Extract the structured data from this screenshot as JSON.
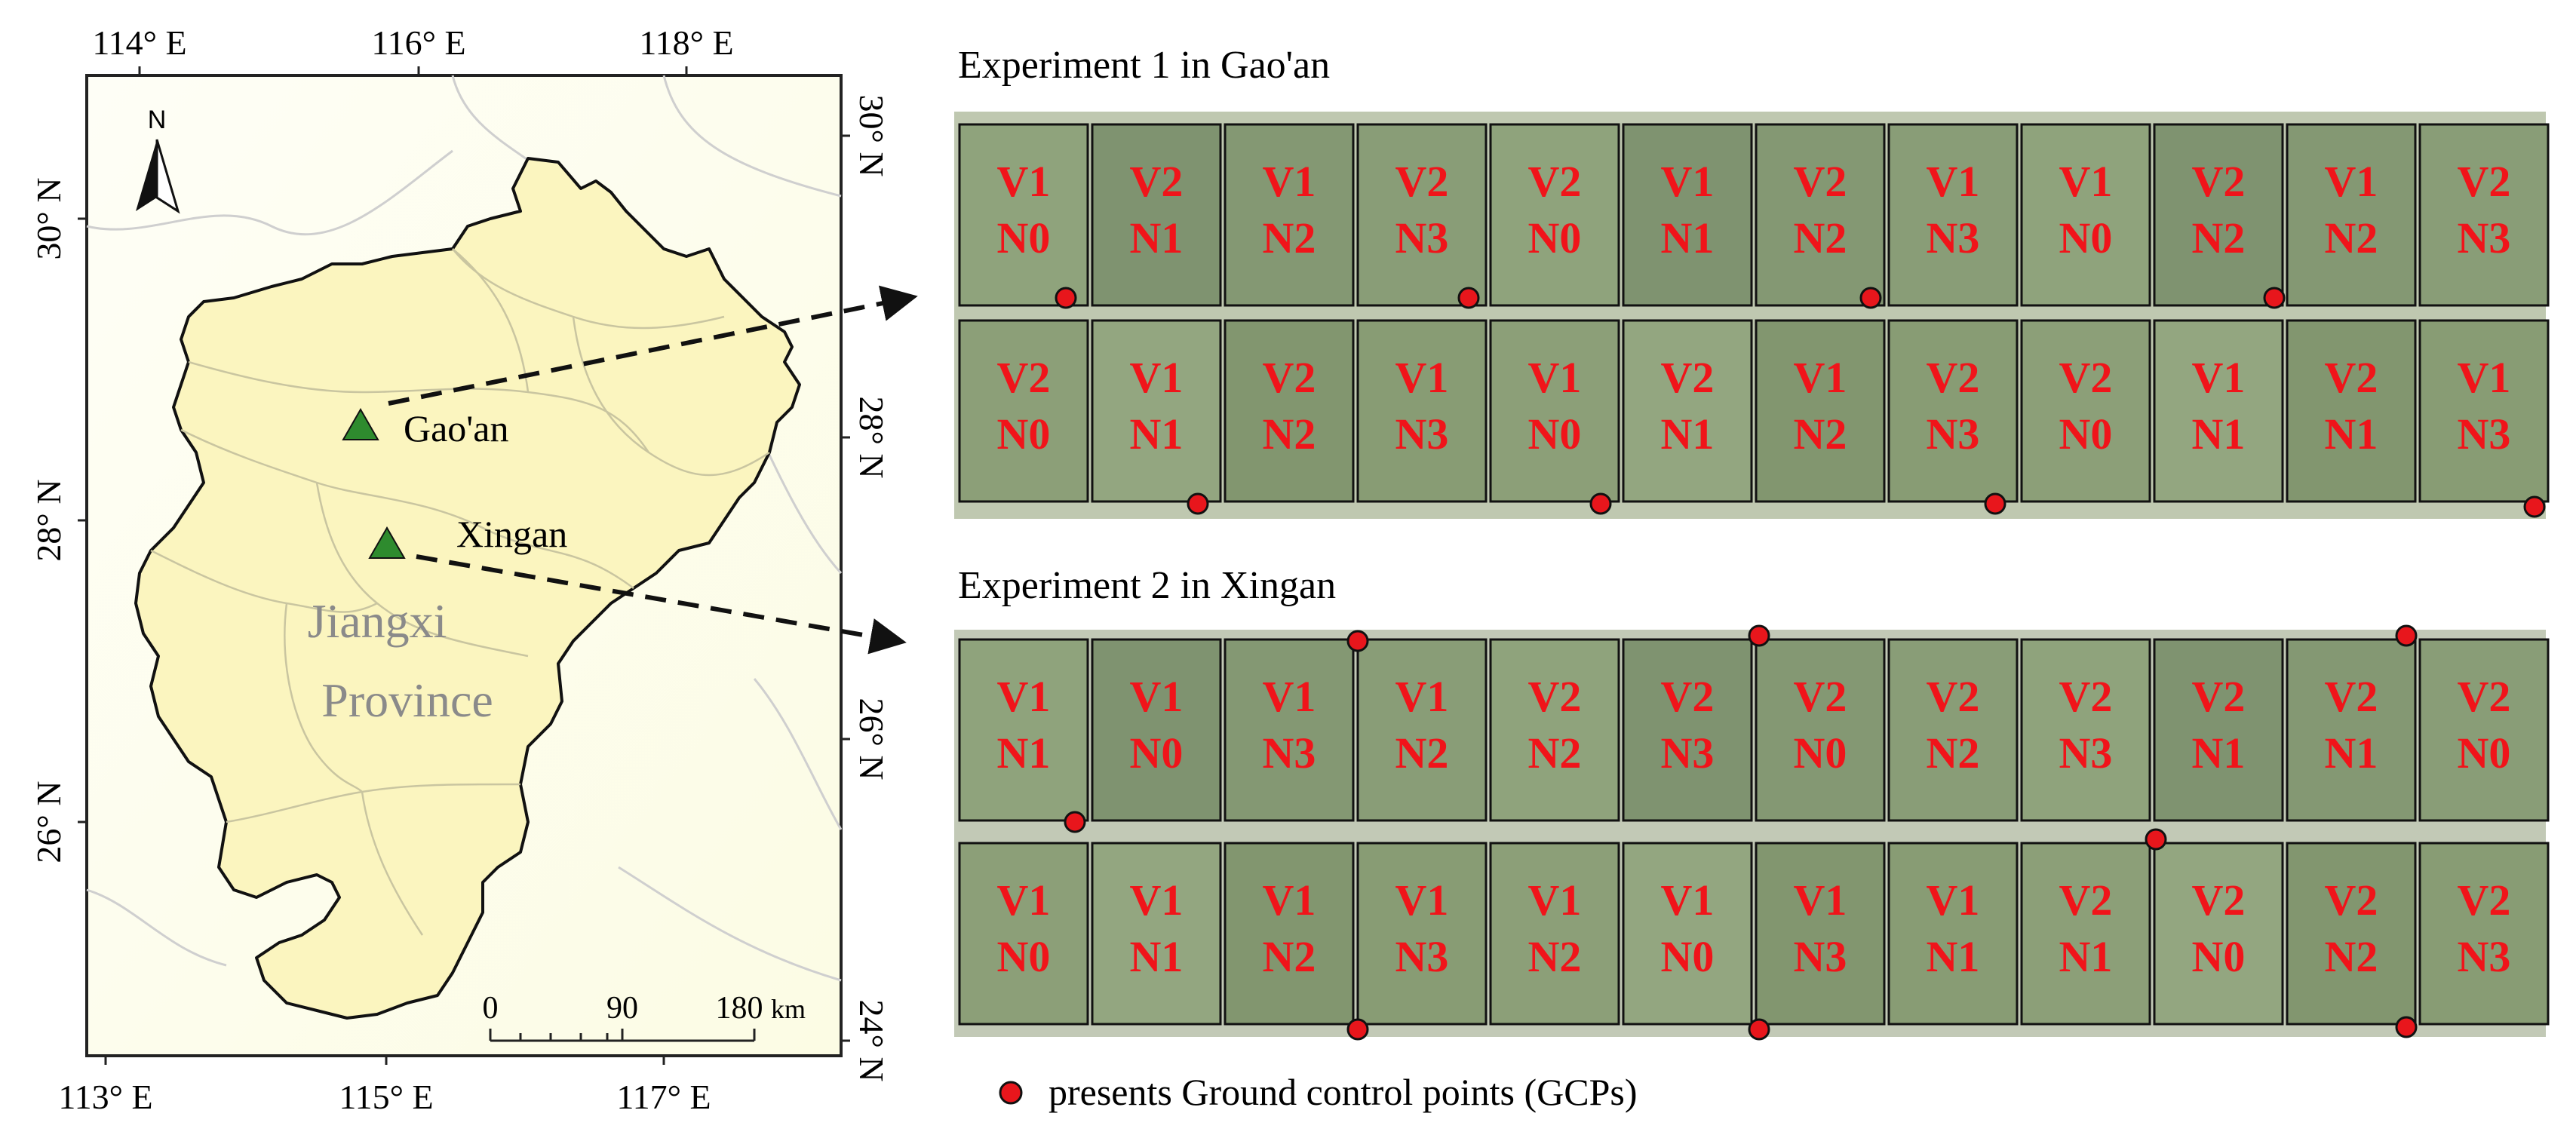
{
  "map": {
    "lon_top": [
      "114° E",
      "116° E",
      "118° E"
    ],
    "lon_bottom": [
      "113° E",
      "115° E",
      "117° E"
    ],
    "lat_left": [
      "30° N",
      "28° N",
      "26° N"
    ],
    "lat_right": [
      "30° N",
      "28° N",
      "26° N",
      "24° N"
    ],
    "north_label": "N",
    "province_label_line1": "Jiangxi",
    "province_label_line2": "Province",
    "sites": [
      {
        "name": "Gao'an"
      },
      {
        "name": "Xingan"
      }
    ],
    "scale": {
      "ticks": [
        "0",
        "90",
        "180"
      ],
      "unit": "km"
    },
    "colors": {
      "province": "#fbf5bf",
      "site_marker": "#2e8b2e",
      "background": "#fefef2"
    }
  },
  "experiment1": {
    "title": "Experiment 1 in Gao'an",
    "row1": [
      [
        "V1",
        "N0"
      ],
      [
        "V2",
        "N1"
      ],
      [
        "V1",
        "N2"
      ],
      [
        "V2",
        "N3"
      ],
      [
        "V2",
        "N0"
      ],
      [
        "V1",
        "N1"
      ],
      [
        "V2",
        "N2"
      ],
      [
        "V1",
        "N3"
      ],
      [
        "V1",
        "N0"
      ],
      [
        "V2",
        "N2"
      ],
      [
        "V1",
        "N2"
      ],
      [
        "V2",
        "N3"
      ]
    ],
    "row2": [
      [
        "V2",
        "N0"
      ],
      [
        "V1",
        "N1"
      ],
      [
        "V2",
        "N2"
      ],
      [
        "V1",
        "N3"
      ],
      [
        "V1",
        "N0"
      ],
      [
        "V2",
        "N1"
      ],
      [
        "V1",
        "N2"
      ],
      [
        "V2",
        "N3"
      ],
      [
        "V2",
        "N0"
      ],
      [
        "V1",
        "N1"
      ],
      [
        "V2",
        "N1"
      ],
      [
        "V1",
        "N3"
      ]
    ]
  },
  "experiment2": {
    "title": "Experiment 2 in Xingan",
    "row1": [
      [
        "V1",
        "N1"
      ],
      [
        "V1",
        "N0"
      ],
      [
        "V1",
        "N3"
      ],
      [
        "V1",
        "N2"
      ],
      [
        "V2",
        "N2"
      ],
      [
        "V2",
        "N3"
      ],
      [
        "V2",
        "N0"
      ],
      [
        "V2",
        "N2"
      ],
      [
        "V2",
        "N3"
      ],
      [
        "V2",
        "N1"
      ],
      [
        "V2",
        "N1"
      ],
      [
        "V2",
        "N0"
      ]
    ],
    "row2": [
      [
        "V1",
        "N0"
      ],
      [
        "V1",
        "N1"
      ],
      [
        "V1",
        "N2"
      ],
      [
        "V1",
        "N3"
      ],
      [
        "V1",
        "N2"
      ],
      [
        "V1",
        "N0"
      ],
      [
        "V1",
        "N3"
      ],
      [
        "V1",
        "N1"
      ],
      [
        "V2",
        "N1"
      ],
      [
        "V2",
        "N0"
      ],
      [
        "V2",
        "N2"
      ],
      [
        "V2",
        "N3"
      ]
    ]
  },
  "legend": {
    "text": "presents Ground control points (GCPs)",
    "color": "#e8161c"
  }
}
